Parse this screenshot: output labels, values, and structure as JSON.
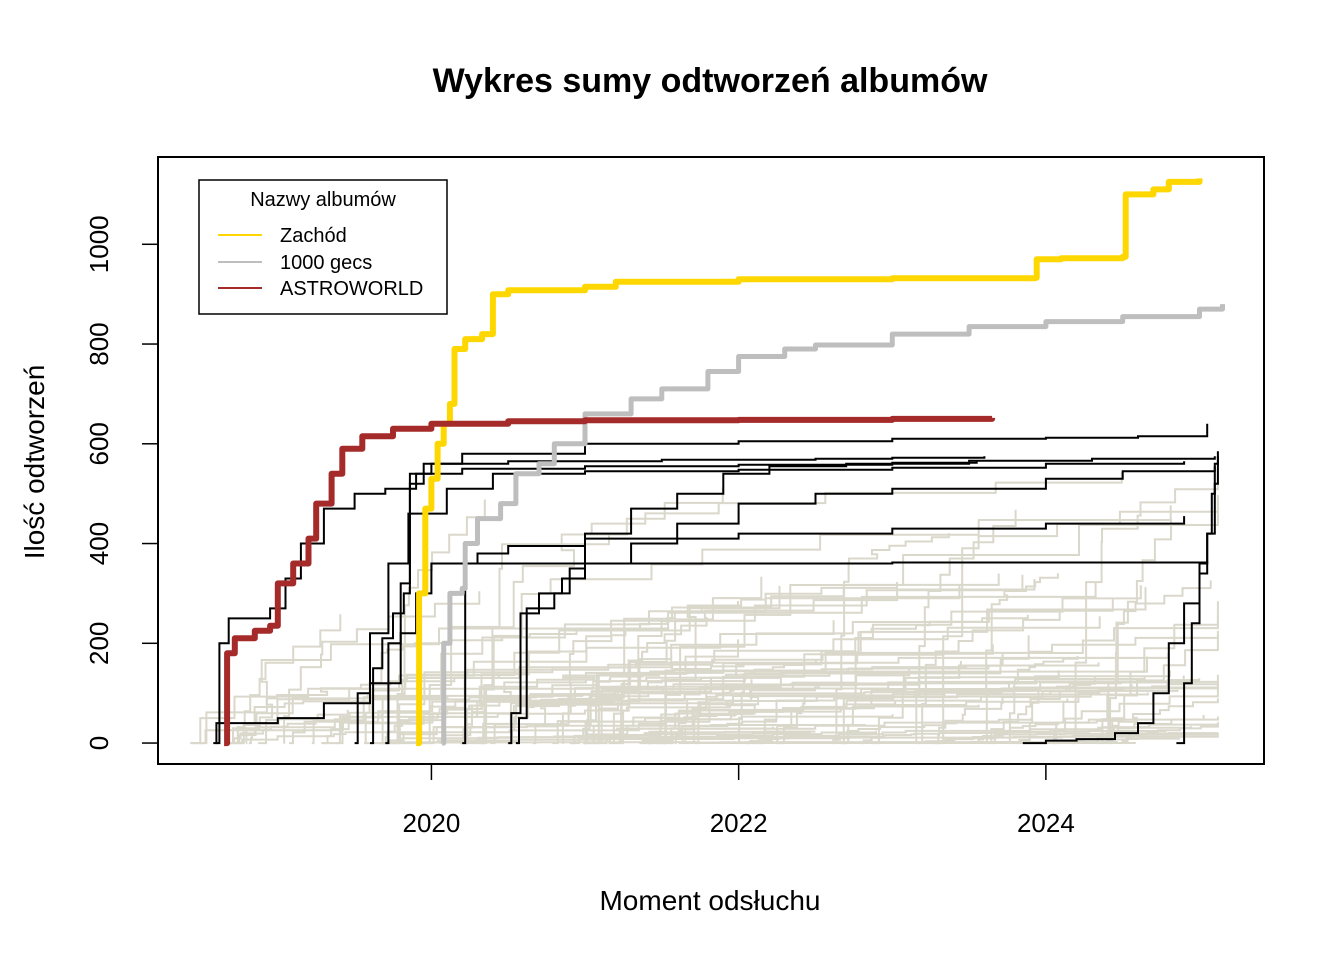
{
  "chart_data": {
    "type": "line",
    "title": "Wykres sumy odtworzeń albumów",
    "xlabel": "Moment odsłuchu",
    "ylabel": "Ilość odtworzeń",
    "xlim": [
      2018.22,
      2025.42
    ],
    "ylim": [
      -42,
      1175
    ],
    "x_ticks": [
      2020,
      2022,
      2024
    ],
    "x_tick_labels": [
      "2020",
      "2022",
      "2024"
    ],
    "y_ticks": [
      0,
      200,
      400,
      600,
      800,
      1000
    ],
    "y_tick_labels": [
      "0",
      "200",
      "400",
      "600",
      "800",
      "1000"
    ],
    "grid": false,
    "legend": {
      "title": "Nazwy albumów",
      "placement": "top-left",
      "entries": [
        {
          "label": "Zachód",
          "color": "#FFD700"
        },
        {
          "label": "1000 gecs",
          "color": "#BEBEBE"
        },
        {
          "label": "ASTROWORLD",
          "color": "#A52A2A"
        }
      ]
    },
    "colors": {
      "background_series": "#DAD7CB",
      "other_top_series": "#000000"
    },
    "series": [
      {
        "name": "Zachód",
        "color": "#FFD700",
        "width": 6,
        "points": [
          [
            2019.9,
            0
          ],
          [
            2019.92,
            300
          ],
          [
            2019.96,
            470
          ],
          [
            2020.0,
            530
          ],
          [
            2020.04,
            600
          ],
          [
            2020.08,
            640
          ],
          [
            2020.12,
            680
          ],
          [
            2020.15,
            790
          ],
          [
            2020.22,
            810
          ],
          [
            2020.33,
            820
          ],
          [
            2020.4,
            900
          ],
          [
            2020.5,
            908
          ],
          [
            2021.0,
            915
          ],
          [
            2021.2,
            925
          ],
          [
            2022.0,
            930
          ],
          [
            2023.0,
            932
          ],
          [
            2023.93,
            933
          ],
          [
            2023.94,
            970
          ],
          [
            2024.1,
            972
          ],
          [
            2024.5,
            975
          ],
          [
            2024.52,
            1100
          ],
          [
            2024.7,
            1110
          ],
          [
            2024.8,
            1125
          ],
          [
            2025.0,
            1132
          ]
        ]
      },
      {
        "name": "1000 gecs",
        "color": "#BEBEBE",
        "width": 5,
        "points": [
          [
            2020.07,
            0
          ],
          [
            2020.08,
            200
          ],
          [
            2020.12,
            300
          ],
          [
            2020.2,
            310
          ],
          [
            2020.22,
            400
          ],
          [
            2020.3,
            450
          ],
          [
            2020.45,
            480
          ],
          [
            2020.55,
            540
          ],
          [
            2020.7,
            560
          ],
          [
            2020.8,
            600
          ],
          [
            2021.0,
            660
          ],
          [
            2021.3,
            690
          ],
          [
            2021.5,
            710
          ],
          [
            2021.8,
            745
          ],
          [
            2022.0,
            775
          ],
          [
            2022.3,
            790
          ],
          [
            2022.5,
            798
          ],
          [
            2023.0,
            820
          ],
          [
            2023.5,
            835
          ],
          [
            2024.0,
            845
          ],
          [
            2024.5,
            855
          ],
          [
            2025.0,
            870
          ],
          [
            2025.15,
            880
          ]
        ]
      },
      {
        "name": "ASTROWORLD",
        "color": "#A52A2A",
        "width": 6,
        "points": [
          [
            2018.65,
            0
          ],
          [
            2018.67,
            180
          ],
          [
            2018.72,
            210
          ],
          [
            2018.85,
            225
          ],
          [
            2018.95,
            235
          ],
          [
            2019.0,
            320
          ],
          [
            2019.1,
            360
          ],
          [
            2019.2,
            410
          ],
          [
            2019.25,
            480
          ],
          [
            2019.35,
            540
          ],
          [
            2019.42,
            590
          ],
          [
            2019.55,
            615
          ],
          [
            2019.75,
            630
          ],
          [
            2020.0,
            640
          ],
          [
            2020.5,
            645
          ],
          [
            2021.0,
            647
          ],
          [
            2022.0,
            648
          ],
          [
            2023.0,
            650
          ],
          [
            2023.65,
            652
          ]
        ]
      }
    ]
  }
}
